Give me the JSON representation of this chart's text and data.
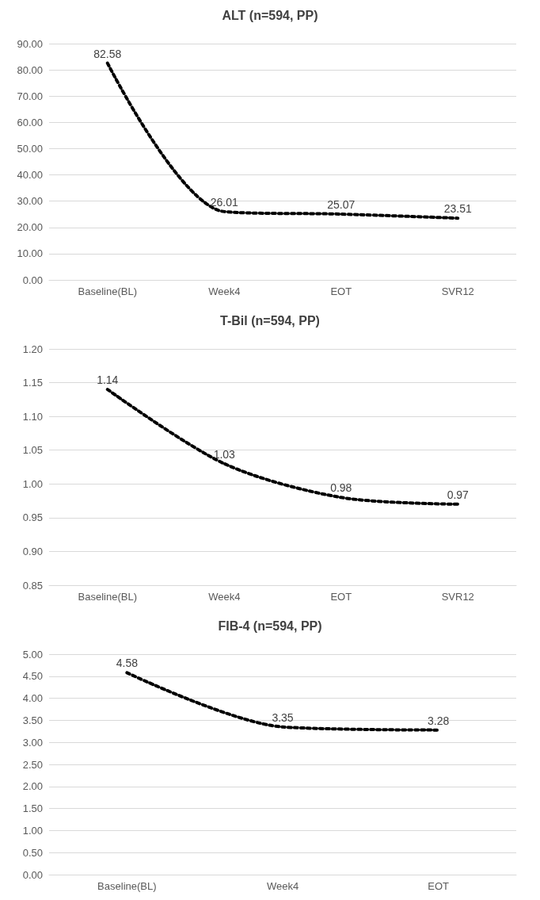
{
  "chart_data": [
    {
      "type": "line",
      "title": "ALT (n=594, PP)",
      "categories": [
        "Baseline(BL)",
        "Week4",
        "EOT",
        "SVR12"
      ],
      "values": [
        82.58,
        26.01,
        25.07,
        23.51
      ],
      "color": "#000000",
      "line_style": "dotted",
      "marker": "none",
      "data_labels": true,
      "grid": "y",
      "ylim": [
        0,
        90
      ],
      "yticks": [
        {
          "value": 0,
          "label": "0.00"
        },
        {
          "value": 10,
          "label": "10.00"
        },
        {
          "value": 20,
          "label": "20.00"
        },
        {
          "value": 30,
          "label": "30.00"
        },
        {
          "value": 40,
          "label": "40.00"
        },
        {
          "value": 50,
          "label": "50.00"
        },
        {
          "value": 60,
          "label": "60.00"
        },
        {
          "value": 70,
          "label": "70.00"
        },
        {
          "value": 80,
          "label": "80.00"
        },
        {
          "value": 90,
          "label": "90.00"
        }
      ]
    },
    {
      "type": "line",
      "title": "T-Bil (n=594, PP)",
      "categories": [
        "Baseline(BL)",
        "Week4",
        "EOT",
        "SVR12"
      ],
      "values": [
        1.14,
        1.03,
        0.98,
        0.97
      ],
      "color": "#000000",
      "line_style": "dotted",
      "marker": "none",
      "data_labels": true,
      "grid": "y",
      "ylim": [
        0.85,
        1.2
      ],
      "yticks": [
        {
          "value": 0.85,
          "label": "0.85"
        },
        {
          "value": 0.9,
          "label": "0.90"
        },
        {
          "value": 0.95,
          "label": "0.95"
        },
        {
          "value": 1.0,
          "label": "1.00"
        },
        {
          "value": 1.05,
          "label": "1.05"
        },
        {
          "value": 1.1,
          "label": "1.10"
        },
        {
          "value": 1.15,
          "label": "1.15"
        },
        {
          "value": 1.2,
          "label": "1.20"
        }
      ]
    },
    {
      "type": "line",
      "title": "FIB-4 (n=594, PP)",
      "categories": [
        "Baseline(BL)",
        "Week4",
        "EOT"
      ],
      "values": [
        4.58,
        3.35,
        3.28
      ],
      "color": "#000000",
      "line_style": "dotted",
      "marker": "none",
      "data_labels": true,
      "grid": "y",
      "ylim": [
        0,
        5
      ],
      "yticks": [
        {
          "value": 0,
          "label": "0.00"
        },
        {
          "value": 0.5,
          "label": "0.50"
        },
        {
          "value": 1,
          "label": "1.00"
        },
        {
          "value": 1.5,
          "label": "1.50"
        },
        {
          "value": 2,
          "label": "2.00"
        },
        {
          "value": 2.5,
          "label": "2.50"
        },
        {
          "value": 3,
          "label": "3.00"
        },
        {
          "value": 3.5,
          "label": "3.50"
        },
        {
          "value": 4,
          "label": "4.00"
        },
        {
          "value": 4.5,
          "label": "4.50"
        },
        {
          "value": 5,
          "label": "5.00"
        }
      ]
    }
  ]
}
